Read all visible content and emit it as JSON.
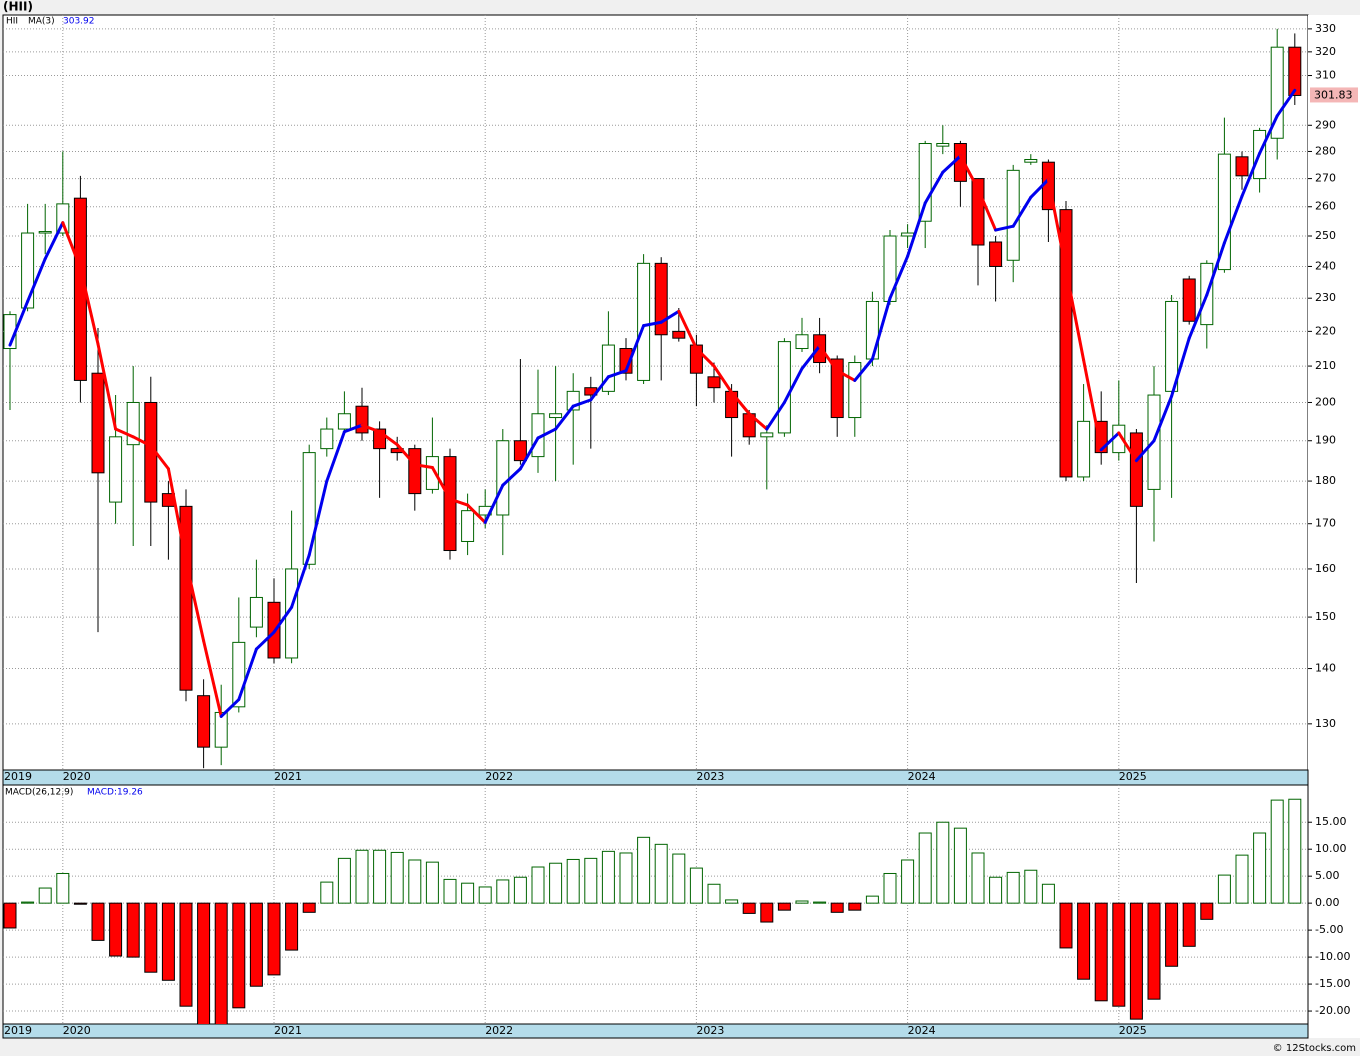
{
  "chart_data": [
    {
      "type": "candlestick",
      "title": "(HII)",
      "symbol": "HII",
      "categories": [
        "2019",
        null,
        null,
        "2020",
        null,
        null,
        null,
        null,
        null,
        null,
        null,
        null,
        null,
        null,
        null,
        "2021",
        null,
        null,
        null,
        null,
        null,
        null,
        null,
        null,
        null,
        null,
        null,
        "2022",
        null,
        null,
        null,
        null,
        null,
        null,
        null,
        null,
        null,
        null,
        null,
        "2023",
        null,
        null,
        null,
        null,
        null,
        null,
        null,
        null,
        null,
        null,
        null,
        "2024",
        null,
        null,
        null,
        null,
        null,
        null,
        null,
        null,
        null,
        null,
        null,
        "2025",
        null,
        null,
        null,
        null,
        null,
        null,
        null,
        null,
        null,
        null
      ],
      "open": [
        215,
        227,
        251,
        251,
        263,
        208,
        175,
        189,
        200,
        177,
        174,
        135,
        126,
        133,
        148,
        153,
        142,
        161,
        188,
        193,
        199,
        193,
        188,
        188,
        178,
        186,
        166,
        172,
        172,
        190,
        186,
        196,
        198,
        204,
        203,
        215,
        206,
        241,
        220,
        216,
        207,
        203,
        197,
        191,
        192,
        215,
        219,
        212,
        196,
        212,
        229,
        250,
        255,
        282,
        283,
        270,
        248,
        242,
        276,
        276,
        259,
        181,
        195,
        187,
        192,
        178,
        203,
        236,
        222,
        239,
        278,
        270,
        285,
        322
      ],
      "high": [
        226,
        261,
        261,
        280,
        271,
        221,
        202,
        210,
        207,
        180,
        178,
        138,
        137,
        154,
        162,
        158,
        173,
        189,
        196,
        203,
        204,
        195,
        191,
        189,
        196,
        188,
        177,
        178,
        193,
        212,
        209,
        210,
        208,
        207,
        226,
        218,
        244,
        243,
        227,
        219,
        211,
        205,
        198,
        194,
        218,
        224,
        224,
        213,
        213,
        232,
        252,
        254,
        284,
        290,
        284,
        270,
        250,
        275,
        279,
        277,
        262,
        205,
        203,
        206,
        193,
        210,
        231,
        237,
        242,
        293,
        280,
        289,
        330,
        328
      ],
      "low": [
        198,
        226,
        244,
        250,
        200,
        147,
        170,
        165,
        165,
        162,
        134,
        122.5,
        123,
        132,
        146,
        141,
        141,
        160,
        186,
        192,
        190,
        176,
        185,
        173,
        177,
        162,
        163,
        169,
        163,
        184,
        182,
        180,
        184,
        188,
        202,
        206,
        205,
        206,
        217,
        199,
        200,
        186,
        189,
        178,
        191,
        214,
        208,
        191,
        191,
        210,
        228,
        246,
        246,
        279,
        260,
        234,
        229,
        235,
        275,
        248,
        180,
        180,
        184,
        185,
        157,
        166,
        176,
        222,
        215,
        238,
        266,
        265,
        277,
        298
      ],
      "close": [
        225,
        251,
        251.5,
        261,
        206,
        182,
        191,
        200,
        175,
        174,
        136,
        126,
        132,
        145,
        154,
        142,
        160,
        187,
        193,
        197,
        192,
        188,
        187,
        177,
        186,
        164,
        173,
        174,
        190,
        185,
        197,
        197,
        203,
        202,
        216,
        208,
        241,
        219,
        218,
        208,
        204,
        196,
        191,
        192,
        217,
        219,
        211,
        196,
        211,
        229,
        250,
        251,
        283,
        283,
        269,
        247,
        240,
        273,
        277,
        259,
        181,
        195,
        187,
        194,
        174,
        202,
        229,
        223,
        241,
        279,
        271,
        288,
        322,
        301.83
      ],
      "up_color": "#006400",
      "down_color": "#ff0000",
      "ma": {
        "name": "MA(3)",
        "up_color": "#0000ee",
        "down_color": "#ff0000",
        "values": [
          216,
          229,
          242.5,
          254.5,
          239.5,
          216.3,
          193,
          191,
          188.7,
          183,
          161.7,
          145.3,
          131.3,
          134.3,
          143.7,
          147,
          152,
          163,
          180,
          192.3,
          194,
          192.3,
          189,
          184,
          183.3,
          175.7,
          174.3,
          170.3,
          179,
          183,
          190.7,
          193,
          199,
          200.7,
          207,
          208.7,
          221.7,
          222.7,
          226,
          215,
          210,
          202.7,
          197,
          193,
          200,
          209.3,
          215.7,
          208.7,
          206,
          212,
          230,
          243.3,
          261.3,
          272.3,
          278.3,
          266.3,
          252,
          253.3,
          263.3,
          269.7,
          239,
          211.7,
          187.7,
          192,
          185,
          190,
          201.7,
          218,
          231,
          247.7,
          263.7,
          279.3,
          293.7,
          303.92
        ]
      },
      "ylim": [
        122.2,
        336.2
      ],
      "log_scale": true,
      "grid": true,
      "yticks": [
        130,
        140,
        150,
        160,
        170,
        180,
        190,
        200,
        210,
        220,
        230,
        240,
        250,
        260,
        270,
        280,
        290,
        310,
        320,
        330
      ]
    },
    {
      "type": "bar",
      "legend": "MACD(26,12,9)",
      "last_value_label": "MACD:19.26",
      "categories": [
        "2019",
        null,
        null,
        "2020",
        null,
        null,
        null,
        null,
        null,
        null,
        null,
        null,
        null,
        null,
        null,
        "2021",
        null,
        null,
        null,
        null,
        null,
        null,
        null,
        null,
        null,
        null,
        null,
        "2022",
        null,
        null,
        null,
        null,
        null,
        null,
        null,
        null,
        null,
        null,
        null,
        "2023",
        null,
        null,
        null,
        null,
        null,
        null,
        null,
        null,
        null,
        null,
        null,
        "2024",
        null,
        null,
        null,
        null,
        null,
        null,
        null,
        null,
        null,
        null,
        null,
        "2025",
        null,
        null,
        null,
        null,
        null,
        null,
        null,
        null,
        null,
        null
      ],
      "values": [
        -4.6,
        0.2,
        2.8,
        5.5,
        -0.2,
        -6.9,
        -9.8,
        -10,
        -12.8,
        -14.3,
        -19.1,
        -23,
        -23,
        -19.4,
        -15.4,
        -13.3,
        -8.7,
        -1.7,
        3.9,
        8.3,
        9.8,
        9.8,
        9.4,
        8,
        7.6,
        4.4,
        3.7,
        3,
        4.3,
        4.8,
        6.7,
        7.4,
        8.1,
        8.3,
        9.6,
        9.3,
        12.2,
        10.9,
        9.1,
        6.5,
        3.5,
        0.6,
        -1.9,
        -3.5,
        -1.3,
        0.4,
        0.2,
        -1.7,
        -1.3,
        1.3,
        5.5,
        8,
        13,
        15,
        13.9,
        9.3,
        4.8,
        5.7,
        6.1,
        3.5,
        -8.3,
        -14.1,
        -18.1,
        -19.1,
        -21.5,
        -17.8,
        -11.7,
        -8,
        -3,
        5.2,
        8.9,
        13,
        19.1,
        19.26
      ],
      "up_color": "#006400",
      "down_color": "#ff0000",
      "ylim": [
        -22.4,
        21.9
      ],
      "grid": true,
      "yticks": [
        {
          "value": 15,
          "label": "15.00"
        },
        {
          "value": 10,
          "label": "10.00"
        },
        {
          "value": 5,
          "label": "5.00"
        },
        {
          "value": 0,
          "label": "0.00"
        },
        {
          "value": -5,
          "label": "-5.00"
        },
        {
          "value": -10,
          "label": "-10.00"
        },
        {
          "value": -15,
          "label": "-15.00"
        },
        {
          "value": -20,
          "label": "-20.00"
        }
      ]
    }
  ],
  "footer": "© 12Stocks.com"
}
